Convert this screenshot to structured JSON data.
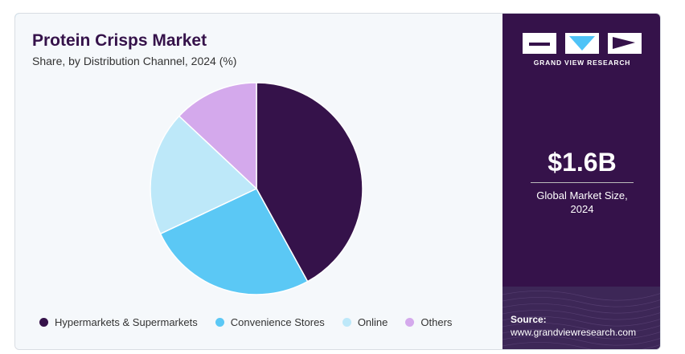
{
  "title": "Protein Crisps Market",
  "subtitle": "Share, by Distribution Channel, 2024 (%)",
  "chart_data": {
    "type": "pie",
    "categories": [
      "Hypermarkets & Supermarkets",
      "Convenience Stores",
      "Online",
      "Others"
    ],
    "values": [
      42,
      26,
      19,
      13
    ],
    "colors": [
      "#35124a",
      "#5bc8f5",
      "#bde8f9",
      "#d4a9ec"
    ],
    "legend_position": "bottom"
  },
  "brand": {
    "logo_text": "GRAND VIEW RESEARCH"
  },
  "stat": {
    "value": "$1.6B",
    "label_line1": "Global Market Size,",
    "label_line2": "2024"
  },
  "source": {
    "label": "Source:",
    "url": "www.grandviewresearch.com"
  }
}
